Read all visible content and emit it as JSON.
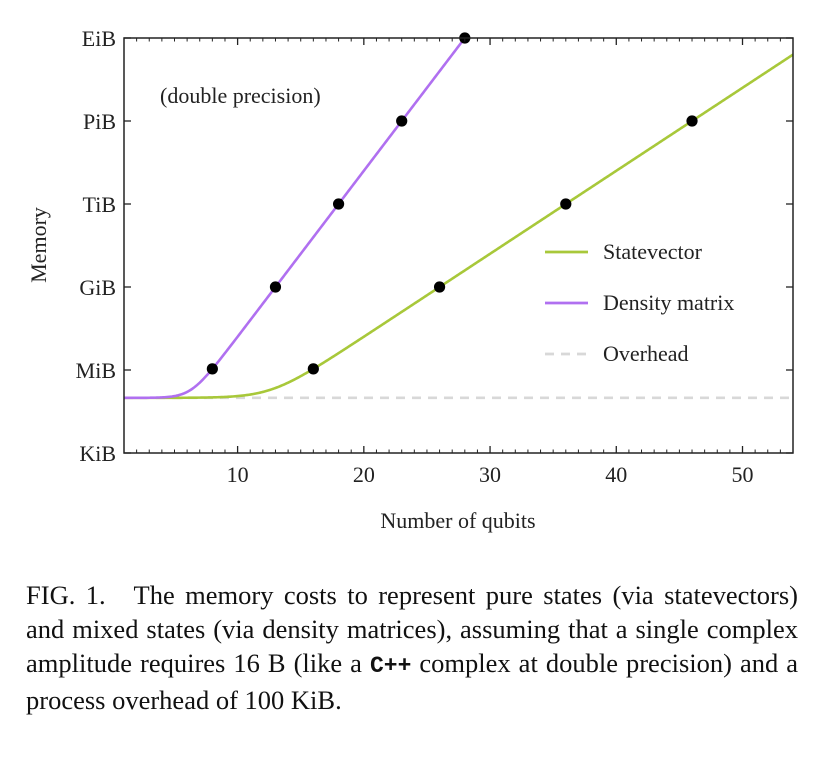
{
  "chart_data": {
    "type": "line",
    "annotation": "(double precision)",
    "xlabel": "Number of qubits",
    "ylabel": "Memory",
    "xlim": [
      1,
      54
    ],
    "x_ticks": [
      10,
      20,
      30,
      40,
      50
    ],
    "y_scale": "log2",
    "y_tick_labels": [
      "KiB",
      "MiB",
      "GiB",
      "TiB",
      "PiB",
      "EiB"
    ],
    "y_tick_values": [
      1024,
      1048576,
      1073741824,
      1099511627776,
      1125899906842624,
      1152921504606846976
    ],
    "ylim": [
      1024,
      1152921504606846976
    ],
    "grid": false,
    "legend_position": "center-right",
    "bytes_per_amplitude": 16,
    "overhead_bytes": 102400,
    "series": [
      {
        "name": "Statevector",
        "color": "#a8c83a",
        "formula": "overhead + bytes_per_amplitude * 2^n",
        "marker_x": [
          16,
          26,
          36,
          46
        ]
      },
      {
        "name": "Density matrix",
        "color": "#b070f0",
        "formula": "overhead + bytes_per_amplitude * 4^n",
        "marker_x": [
          8,
          13,
          18,
          23,
          28
        ]
      },
      {
        "name": "Overhead",
        "color": "#d8d8d8",
        "dashed": true,
        "constant": 102400
      }
    ]
  },
  "caption": {
    "label": "FIG. 1.",
    "text_1": "The memory costs to represent pure states (via statevectors) and mixed states (via density matrices), assuming that a single complex amplitude requires 16 B (like a ",
    "code": "C++",
    "text_2": " complex at double precision) and a process overhead of 100 KiB."
  }
}
